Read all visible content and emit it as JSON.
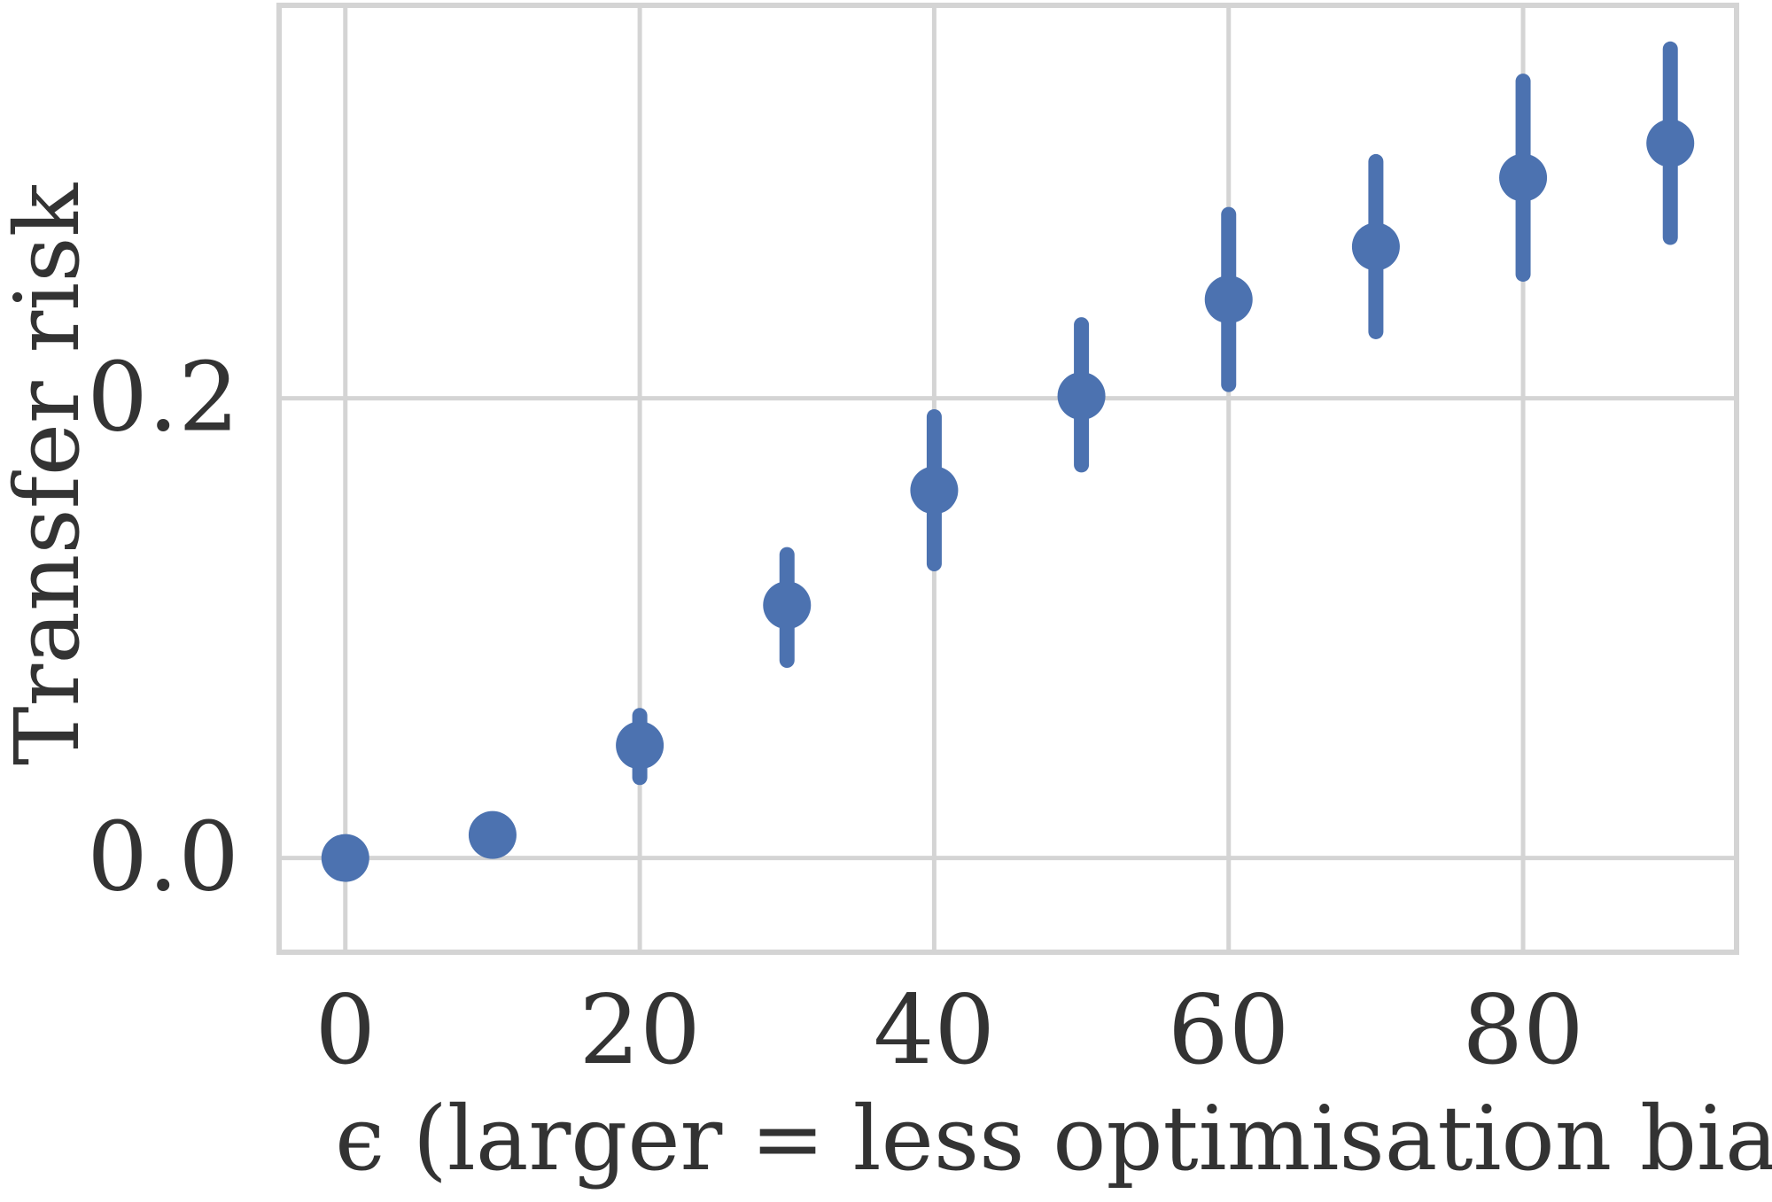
{
  "chart_data": {
    "type": "scatter",
    "title": "",
    "xlabel": "ϵ (larger = less optimisation bias)",
    "ylabel": "Transfer risk",
    "xlim": [
      -4.5,
      94.5
    ],
    "ylim": [
      -0.041,
      0.371
    ],
    "x_ticks": [
      0,
      20,
      40,
      60,
      80
    ],
    "x_tick_labels": [
      "0",
      "20",
      "40",
      "60",
      "80"
    ],
    "y_ticks": [
      0.0,
      0.2
    ],
    "y_tick_labels": [
      "0.0",
      "0.2"
    ],
    "grid": true,
    "legend": "none",
    "colors": {
      "marker": "#4c72b0",
      "grid": "#d4d4d4",
      "text": "#333333"
    },
    "series": [
      {
        "points": [
          {
            "x": 0,
            "y": 0.0,
            "low": 0.0,
            "high": 0.0
          },
          {
            "x": 10,
            "y": 0.01,
            "low": 0.01,
            "high": 0.01
          },
          {
            "x": 20,
            "y": 0.049,
            "low": 0.035,
            "high": 0.062
          },
          {
            "x": 30,
            "y": 0.11,
            "low": 0.086,
            "high": 0.132
          },
          {
            "x": 40,
            "y": 0.16,
            "low": 0.128,
            "high": 0.192
          },
          {
            "x": 50,
            "y": 0.201,
            "low": 0.171,
            "high": 0.232
          },
          {
            "x": 60,
            "y": 0.243,
            "low": 0.206,
            "high": 0.28
          },
          {
            "x": 70,
            "y": 0.266,
            "low": 0.229,
            "high": 0.303
          },
          {
            "x": 80,
            "y": 0.296,
            "low": 0.254,
            "high": 0.338
          },
          {
            "x": 90,
            "y": 0.311,
            "low": 0.27,
            "high": 0.352
          }
        ]
      }
    ]
  }
}
